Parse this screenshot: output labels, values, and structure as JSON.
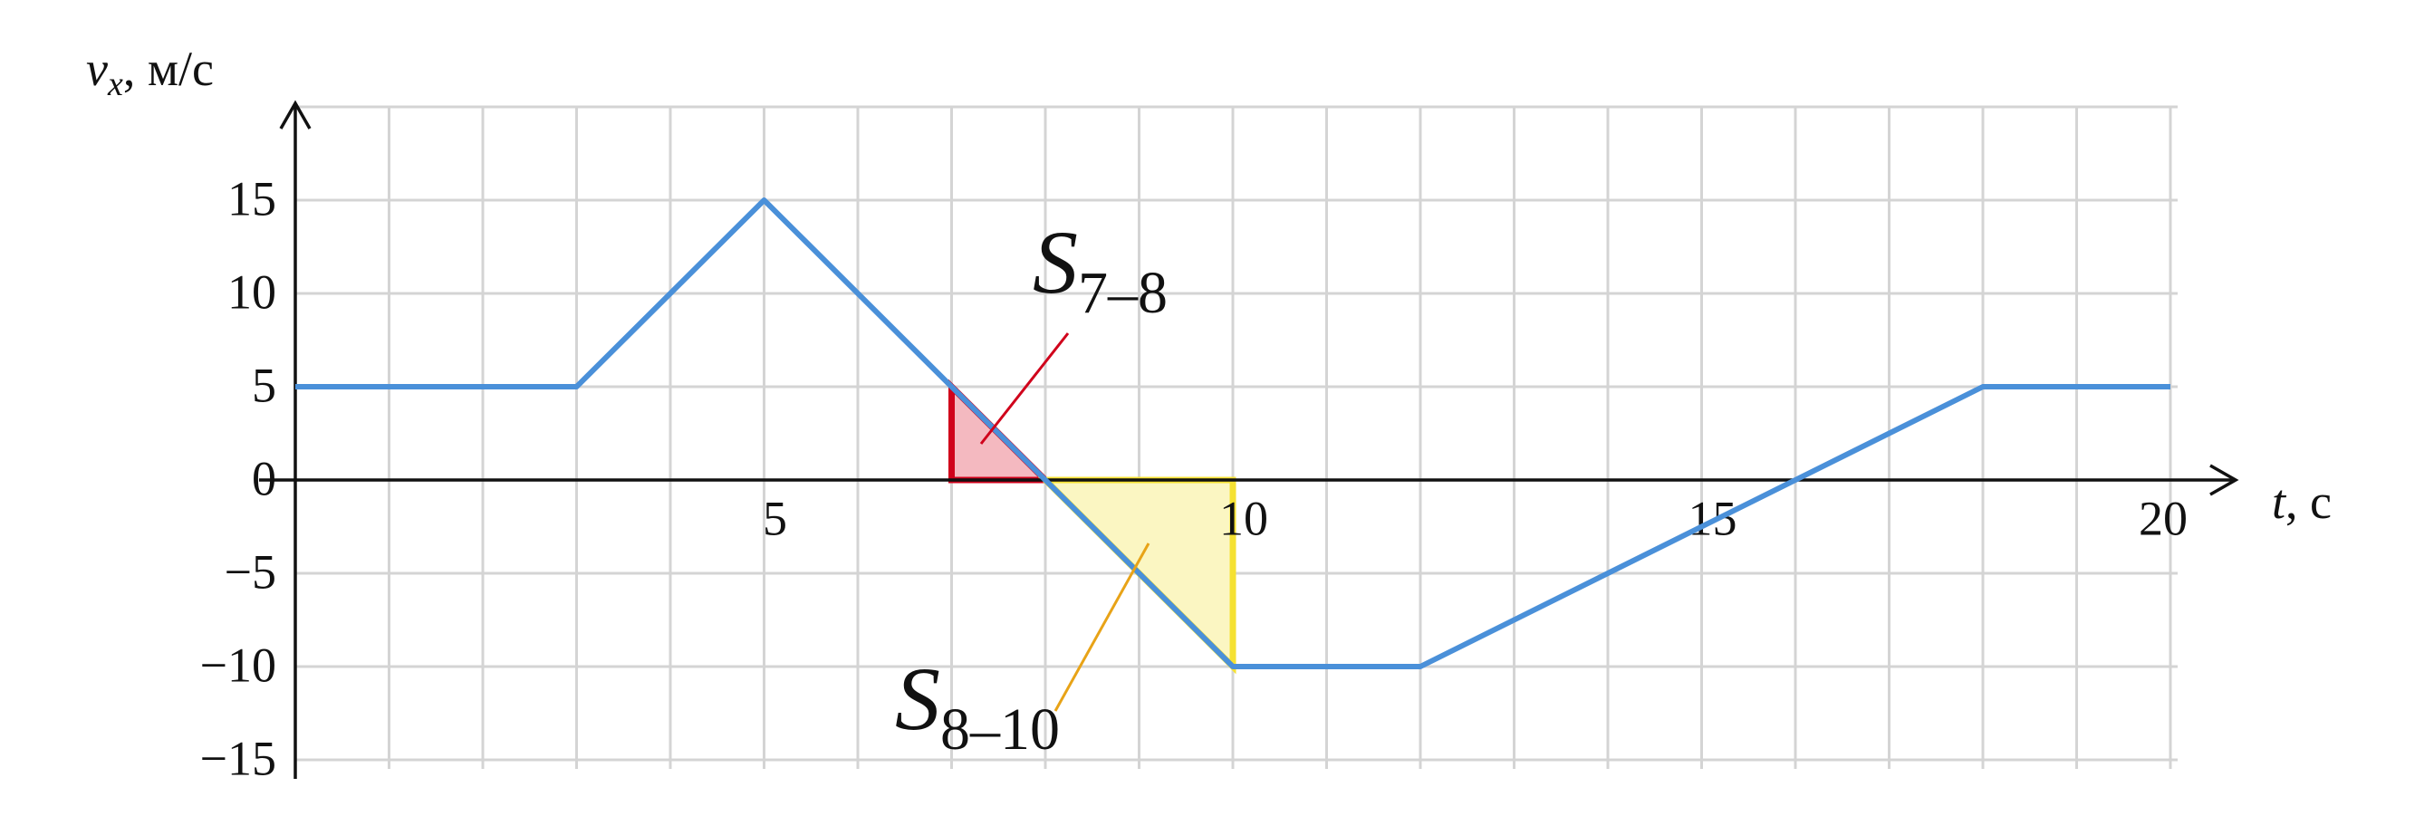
{
  "chart_data": {
    "type": "line",
    "x": [
      0,
      3,
      5,
      7,
      8,
      10,
      12,
      18,
      20
    ],
    "values": [
      5,
      5,
      15,
      5,
      0,
      -10,
      -10,
      5,
      5
    ],
    "color": "#4a90d9",
    "xlim": [
      0,
      20
    ],
    "ylim": [
      -15,
      20
    ],
    "xticks": [
      5,
      10,
      15,
      20
    ],
    "yticks": [
      {
        "value": -15,
        "label": "−15"
      },
      {
        "value": -10,
        "label": "−10"
      },
      {
        "value": -5,
        "label": "−5"
      },
      0,
      5,
      10,
      15
    ],
    "xgrid": [
      1,
      2,
      3,
      4,
      5,
      6,
      7,
      8,
      9,
      10,
      11,
      12,
      13,
      14,
      15,
      16,
      17,
      18,
      19,
      20
    ],
    "ygrid": [
      -15,
      -10,
      -5,
      5,
      10,
      15,
      20
    ],
    "grid": true,
    "xlabel": {
      "text": "t",
      "suffix": ", с"
    },
    "ylabel": {
      "text": "v",
      "subscript": "x",
      "suffix": ", м/с"
    },
    "regions": [
      {
        "label": "S",
        "subscript": "7–8",
        "from": 7,
        "to": 8,
        "stroke": "#d0021b",
        "fill": "#f4b9c0",
        "label_color": "#d0021b"
      },
      {
        "label": "S",
        "subscript": "8–10",
        "from": 8,
        "to": 10,
        "stroke": "#f5e132",
        "fill": "#fbf6c2",
        "label_color": "#e8a317"
      }
    ]
  }
}
